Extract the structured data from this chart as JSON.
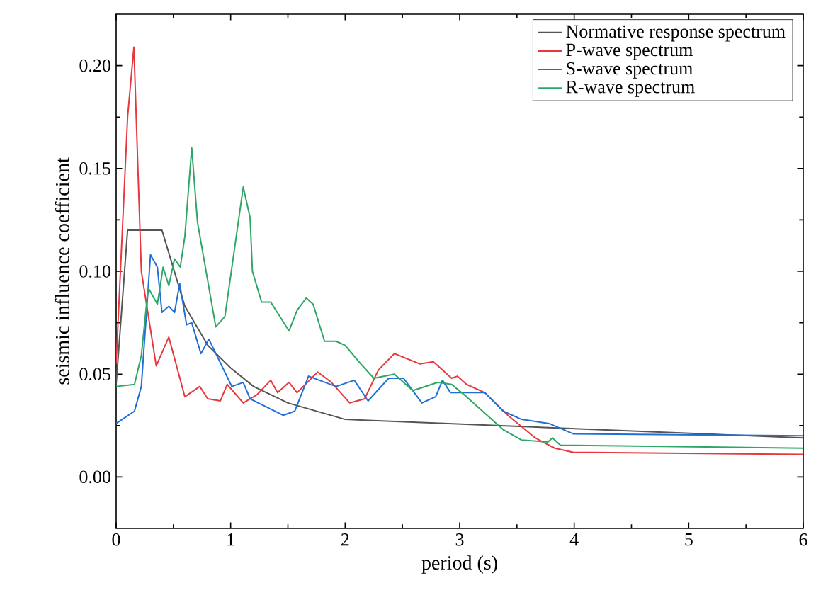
{
  "chart_data": {
    "type": "line",
    "xlabel": "period (s)",
    "ylabel": "seismic influence coefficient",
    "xlim": [
      0,
      6
    ],
    "ylim": [
      -0.025,
      0.225
    ],
    "xticks": [
      0,
      1,
      2,
      3,
      4,
      5,
      6
    ],
    "yticks": [
      {
        "value": 0,
        "label": "0.00"
      },
      {
        "value": 0.05,
        "label": "0.05"
      },
      {
        "value": 0.1,
        "label": "0.10"
      },
      {
        "value": 0.15,
        "label": "0.15"
      },
      {
        "value": 0.2,
        "label": "0.20"
      }
    ],
    "legend": "top right",
    "grid": false,
    "marker": "none",
    "line_style": "solid",
    "series": [
      {
        "name": "Normative response spectrum",
        "color": "#555555",
        "x": [
          0,
          0.1,
          0.4,
          0.6,
          0.8,
          1.0,
          1.2,
          1.5,
          2.0,
          6.0
        ],
        "values": [
          0.045,
          0.12,
          0.12,
          0.083,
          0.064,
          0.053,
          0.044,
          0.036,
          0.028,
          0.019
        ]
      },
      {
        "name": "P-wave spectrum",
        "color": "#e8383d",
        "x": [
          0,
          0.1,
          0.155,
          0.22,
          0.35,
          0.46,
          0.6,
          0.73,
          0.8,
          0.91,
          0.97,
          1.11,
          1.23,
          1.35,
          1.41,
          1.51,
          1.58,
          1.76,
          1.88,
          2.04,
          2.17,
          2.29,
          2.43,
          2.65,
          2.77,
          2.93,
          2.98,
          3.06,
          3.22,
          3.42,
          3.66,
          3.83,
          3.99,
          6.0
        ],
        "values": [
          0.055,
          0.175,
          0.209,
          0.1,
          0.054,
          0.068,
          0.039,
          0.044,
          0.038,
          0.037,
          0.045,
          0.036,
          0.04,
          0.047,
          0.041,
          0.046,
          0.041,
          0.051,
          0.046,
          0.036,
          0.038,
          0.052,
          0.06,
          0.055,
          0.056,
          0.048,
          0.049,
          0.045,
          0.041,
          0.03,
          0.019,
          0.014,
          0.012,
          0.011
        ]
      },
      {
        "name": "S-wave spectrum",
        "color": "#1f6fd6",
        "x": [
          0,
          0.16,
          0.22,
          0.3,
          0.36,
          0.4,
          0.46,
          0.51,
          0.555,
          0.615,
          0.66,
          0.74,
          0.81,
          1.01,
          1.11,
          1.17,
          1.46,
          1.56,
          1.68,
          1.92,
          2.08,
          2.2,
          2.38,
          2.51,
          2.67,
          2.79,
          2.85,
          2.92,
          3.22,
          3.38,
          3.54,
          3.78,
          3.99,
          6.0
        ],
        "values": [
          0.026,
          0.032,
          0.044,
          0.108,
          0.102,
          0.08,
          0.083,
          0.08,
          0.094,
          0.074,
          0.075,
          0.06,
          0.067,
          0.044,
          0.046,
          0.038,
          0.03,
          0.032,
          0.049,
          0.044,
          0.047,
          0.037,
          0.048,
          0.048,
          0.036,
          0.039,
          0.047,
          0.041,
          0.041,
          0.032,
          0.028,
          0.026,
          0.021,
          0.02
        ]
      },
      {
        "name": "R-wave spectrum",
        "color": "#2ea665",
        "x": [
          0,
          0.16,
          0.22,
          0.28,
          0.36,
          0.41,
          0.46,
          0.51,
          0.56,
          0.6,
          0.66,
          0.71,
          0.87,
          0.95,
          1.11,
          1.17,
          1.19,
          1.27,
          1.35,
          1.51,
          1.58,
          1.66,
          1.72,
          1.82,
          1.92,
          2.0,
          2.12,
          2.25,
          2.43,
          2.59,
          2.81,
          2.93,
          3.06,
          3.26,
          3.38,
          3.54,
          3.77,
          3.81,
          3.88,
          6.0
        ],
        "values": [
          0.044,
          0.045,
          0.059,
          0.092,
          0.084,
          0.102,
          0.093,
          0.106,
          0.102,
          0.117,
          0.16,
          0.124,
          0.073,
          0.078,
          0.141,
          0.126,
          0.1,
          0.085,
          0.085,
          0.071,
          0.081,
          0.087,
          0.084,
          0.066,
          0.066,
          0.064,
          0.056,
          0.048,
          0.05,
          0.042,
          0.046,
          0.045,
          0.039,
          0.029,
          0.023,
          0.018,
          0.017,
          0.019,
          0.0155,
          0.014
        ]
      }
    ]
  }
}
